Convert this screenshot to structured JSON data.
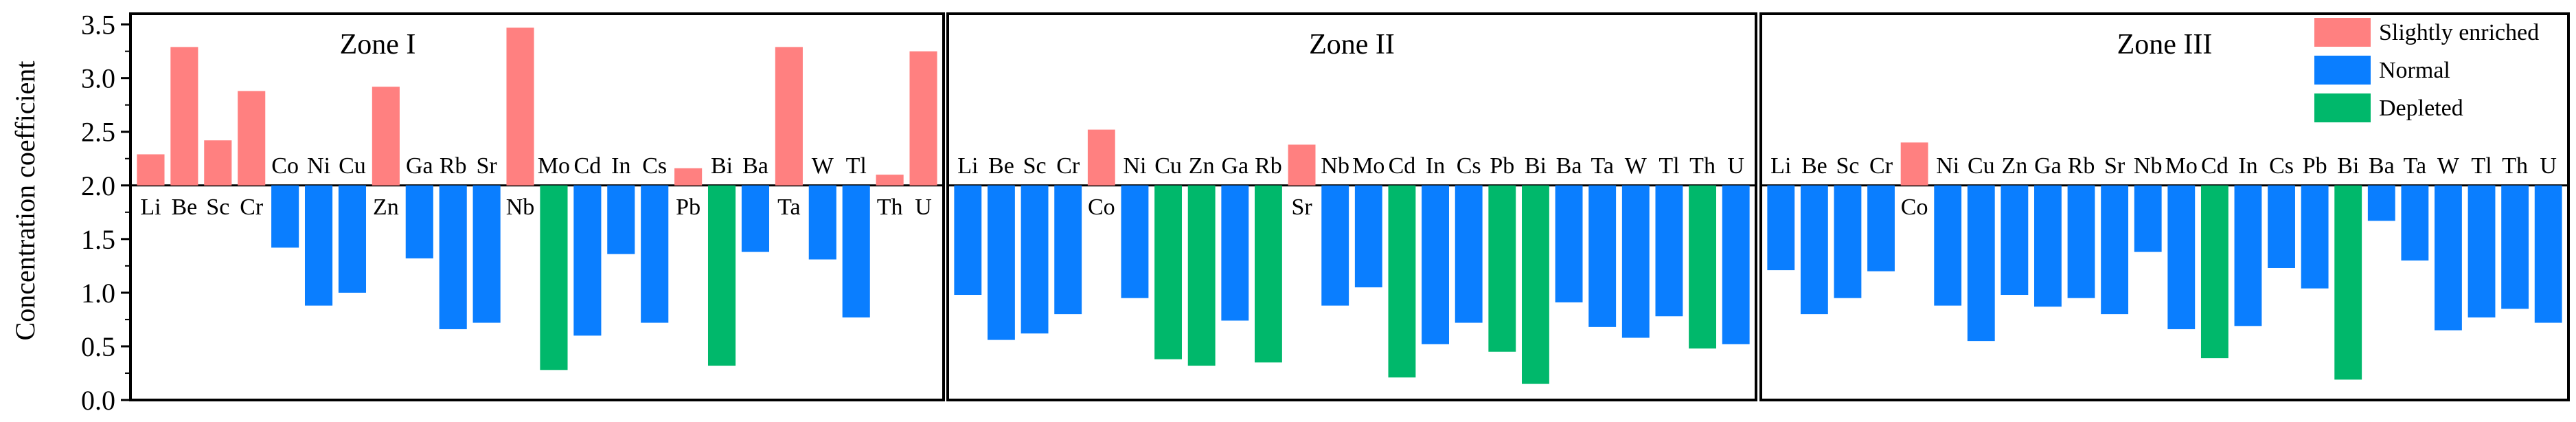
{
  "chart_data": {
    "type": "bar",
    "ylabel": "Concentration coefficient",
    "baseline": 2.0,
    "ylim": [
      0,
      3.6
    ],
    "yticks": [
      "0.0",
      "0.5",
      "1.0",
      "1.5",
      "2.0",
      "2.5",
      "3.0",
      "3.5"
    ],
    "legend": {
      "position": "top-right",
      "entries": [
        {
          "key": "slight",
          "label": "Slightly enriched",
          "color": "#FF8080"
        },
        {
          "key": "normal",
          "label": "Normal",
          "color": "#0A7EFF"
        },
        {
          "key": "depleted",
          "label": "Depleted",
          "color": "#00B86B"
        }
      ]
    },
    "panels": [
      {
        "title": "Zone I",
        "categories": [
          "Li",
          "Be",
          "Sc",
          "Cr",
          "Co",
          "Ni",
          "Cu",
          "Zn",
          "Ga",
          "Rb",
          "Sr",
          "Nb",
          "Mo",
          "Cd",
          "In",
          "Cs",
          "Pb",
          "Bi",
          "Ba",
          "Ta",
          "W",
          "Tl",
          "Th",
          "U"
        ],
        "values": [
          2.29,
          3.29,
          2.42,
          2.88,
          1.42,
          0.88,
          1.0,
          2.92,
          1.32,
          0.66,
          0.72,
          3.47,
          0.28,
          0.6,
          1.36,
          0.72,
          2.16,
          0.32,
          1.38,
          3.29,
          1.31,
          0.77,
          2.1,
          3.25
        ],
        "classes": [
          "slight",
          "slight",
          "slight",
          "slight",
          "normal",
          "normal",
          "normal",
          "slight",
          "normal",
          "normal",
          "normal",
          "slight",
          "depleted",
          "normal",
          "normal",
          "normal",
          "slight",
          "depleted",
          "normal",
          "slight",
          "normal",
          "normal",
          "slight",
          "slight"
        ]
      },
      {
        "title": "Zone II",
        "categories": [
          "Li",
          "Be",
          "Sc",
          "Cr",
          "Co",
          "Ni",
          "Cu",
          "Zn",
          "Ga",
          "Rb",
          "Sr",
          "Nb",
          "Mo",
          "Cd",
          "In",
          "Cs",
          "Pb",
          "Bi",
          "Ba",
          "Ta",
          "W",
          "Tl",
          "Th",
          "U"
        ],
        "values": [
          0.98,
          0.56,
          0.62,
          0.8,
          2.52,
          0.95,
          0.38,
          0.32,
          0.74,
          0.35,
          2.38,
          0.88,
          1.05,
          0.21,
          0.52,
          0.72,
          0.45,
          0.15,
          0.91,
          0.68,
          0.58,
          0.78,
          0.48,
          0.52
        ],
        "classes": [
          "normal",
          "normal",
          "normal",
          "normal",
          "slight",
          "normal",
          "depleted",
          "depleted",
          "normal",
          "depleted",
          "slight",
          "normal",
          "normal",
          "depleted",
          "normal",
          "normal",
          "depleted",
          "depleted",
          "normal",
          "normal",
          "normal",
          "normal",
          "depleted",
          "normal"
        ]
      },
      {
        "title": "Zone III",
        "categories": [
          "Li",
          "Be",
          "Sc",
          "Cr",
          "Co",
          "Ni",
          "Cu",
          "Zn",
          "Ga",
          "Rb",
          "Sr",
          "Nb",
          "Mo",
          "Cd",
          "In",
          "Cs",
          "Pb",
          "Bi",
          "Ba",
          "Ta",
          "W",
          "Tl",
          "Th",
          "U"
        ],
        "values": [
          1.21,
          0.8,
          0.95,
          1.2,
          2.4,
          0.88,
          0.55,
          0.98,
          0.87,
          0.95,
          0.8,
          1.38,
          0.66,
          0.39,
          0.69,
          1.23,
          1.04,
          0.19,
          1.67,
          1.3,
          0.65,
          0.77,
          0.85,
          0.72
        ],
        "classes": [
          "normal",
          "normal",
          "normal",
          "normal",
          "slight",
          "normal",
          "normal",
          "normal",
          "normal",
          "normal",
          "normal",
          "normal",
          "normal",
          "depleted",
          "normal",
          "normal",
          "normal",
          "depleted",
          "normal",
          "normal",
          "normal",
          "normal",
          "normal",
          "normal"
        ]
      }
    ]
  }
}
